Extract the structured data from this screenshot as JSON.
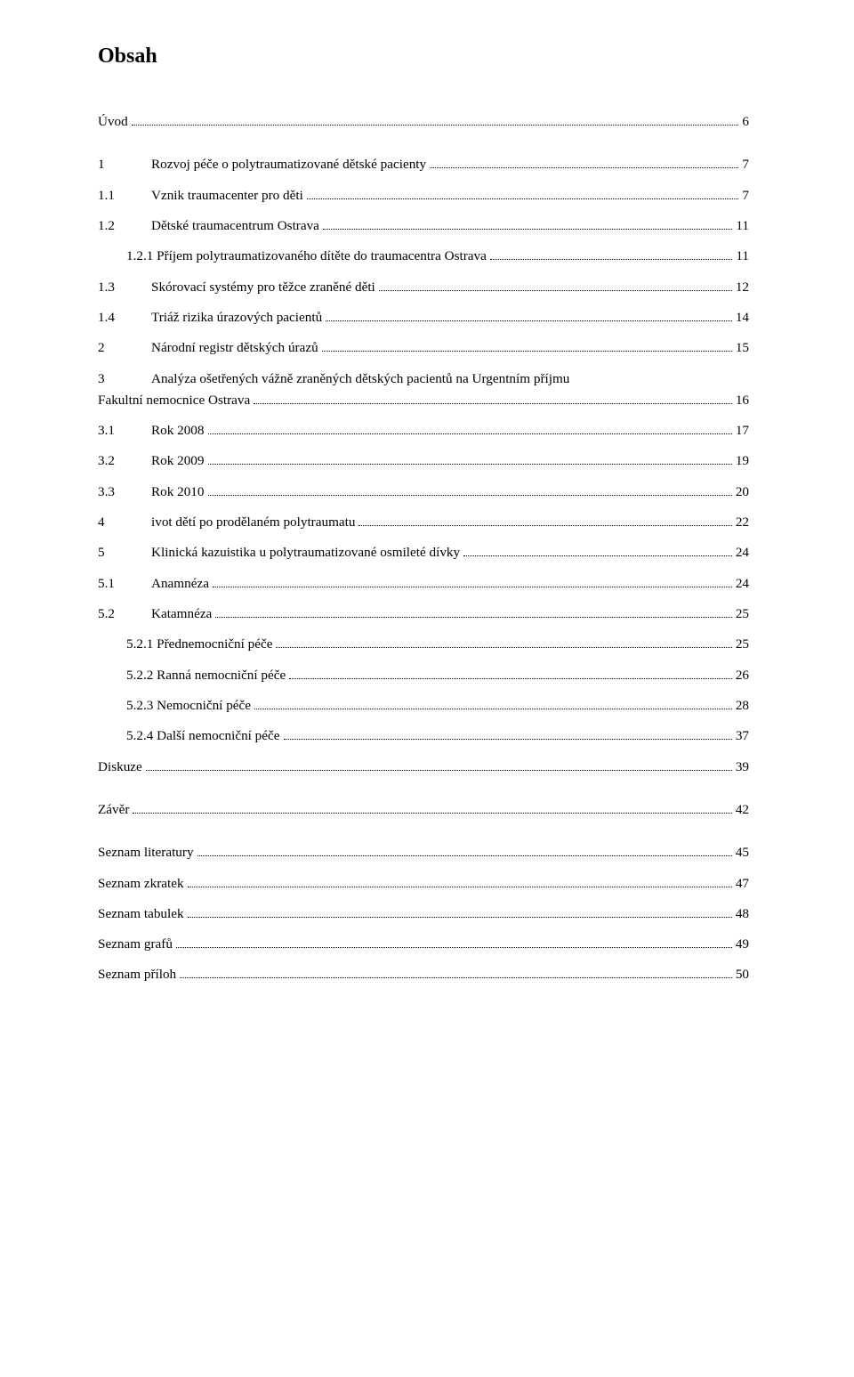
{
  "title": "Obsah",
  "entries": [
    {
      "label": "",
      "text": "Úvod",
      "page": "6"
    },
    {
      "label": "1",
      "text": "Rozvoj péče o polytraumatizované dětské pacienty",
      "page": "7"
    },
    {
      "label": "1.1",
      "text": "Vznik traumacenter pro děti",
      "page": "7"
    },
    {
      "label": "1.2",
      "text": "Dětské traumacentrum Ostrava",
      "page": "11"
    },
    {
      "label": "",
      "sub": true,
      "text": "1.2.1 Příjem polytraumatizovaného dítěte do traumacentra Ostrava",
      "page": "11"
    },
    {
      "label": "1.3",
      "text": "Skórovací systémy pro těžce zraněné děti",
      "page": "12"
    },
    {
      "label": "1.4",
      "text": "Triáž rizika úrazových pacientů",
      "page": "14"
    },
    {
      "label": "2",
      "text": "Národní registr dětských úrazů",
      "page": "15"
    },
    {
      "label": "3",
      "text": "Analýza ošetřených vážně zraněných dětských pacientů na Urgentním příjmu",
      "wrap": "Fakultní nemocnice Ostrava",
      "page": "16"
    },
    {
      "label": "3.1",
      "text": "Rok 2008",
      "page": "17"
    },
    {
      "label": "3.2",
      "text": "Rok 2009",
      "page": "19"
    },
    {
      "label": "3.3",
      "text": "Rok 2010",
      "page": "20"
    },
    {
      "label": "4",
      "text": "ivot dětí po prodělaném polytraumatu",
      "page": "22"
    },
    {
      "label": "5",
      "text": "Klinická kazuistika u polytraumatizované osmileté dívky",
      "page": "24"
    },
    {
      "label": "5.1",
      "text": "Anamnéza",
      "page": "24"
    },
    {
      "label": "5.2",
      "text": "Katamnéza",
      "page": "25"
    },
    {
      "label": "",
      "sub": true,
      "text": "5.2.1 Přednemocniční péče",
      "page": "25"
    },
    {
      "label": "",
      "sub": true,
      "text": "5.2.2 Ranná nemocniční péče",
      "page": "26"
    },
    {
      "label": "",
      "sub": true,
      "text": "5.2.3 Nemocniční péče",
      "page": "28"
    },
    {
      "label": "",
      "sub": true,
      "text": "5.2.4 Další nemocniční péče",
      "page": "37"
    },
    {
      "label": "",
      "text": "Diskuze",
      "page": "39"
    },
    {
      "label": "",
      "text": "Závěr",
      "page": "42"
    },
    {
      "label": "",
      "nodots": true,
      "text": "Seznam literatury",
      "page": "45"
    },
    {
      "label": "",
      "nodots": true,
      "text": "Seznam zkratek",
      "page": "47"
    },
    {
      "label": "",
      "nodots": true,
      "text": "Seznam tabulek",
      "page": "48"
    },
    {
      "label": "",
      "nodots": true,
      "text": "Seznam grafů",
      "page": "49"
    },
    {
      "label": "",
      "nodots": true,
      "text": "Seznam příloh",
      "page": "50"
    }
  ],
  "layout": {
    "labelWidthMain": 60,
    "labelWidthSub": 32,
    "gapAfter": [
      0,
      20,
      21
    ]
  }
}
